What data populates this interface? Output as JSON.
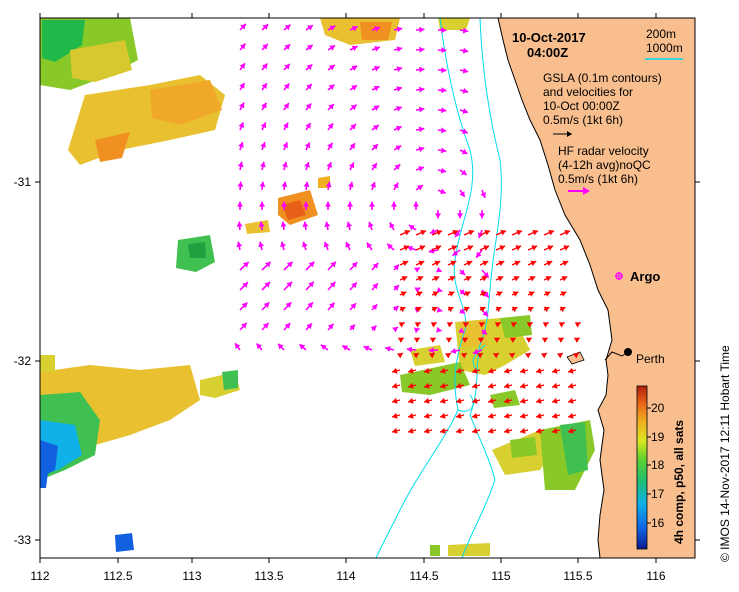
{
  "title": {
    "date": "10-Oct-2017",
    "time": "04:00Z"
  },
  "contour_legend": {
    "label_200": "200m",
    "label_1000": "1000m"
  },
  "gsla_note": {
    "line1": "GSLA (0.1m contours)",
    "line2": "and velocities for",
    "line3": "10-Oct 00:00Z",
    "scale": "0.5m/s (1kt 6h)"
  },
  "hf_note": {
    "line1": "HF radar velocity",
    "line2": "(4-12h avg)noQC",
    "scale": "0.5m/s (1kt 6h)"
  },
  "places": {
    "argo": "Argo",
    "perth": "Perth"
  },
  "x_ticks": [
    "112",
    "112.5",
    "113",
    "113.5",
    "114",
    "114.5",
    "115",
    "115.5",
    "116"
  ],
  "y_ticks": [
    "-31",
    "-32",
    "-33"
  ],
  "colorbar": {
    "ticks": [
      "20",
      "19",
      "18",
      "17",
      "16"
    ],
    "range": [
      15.2,
      20.6
    ],
    "label": "4h comp, p50, all sats"
  },
  "credit": "© IMOS 14-Nov-2017 12:11 Hobart Time",
  "colors": {
    "land": "#F9BE8E",
    "vector_gsla": "#FF00FF",
    "vector_hf": "#FF0000",
    "contour": "#00DDEE",
    "frame": "#000000"
  }
}
